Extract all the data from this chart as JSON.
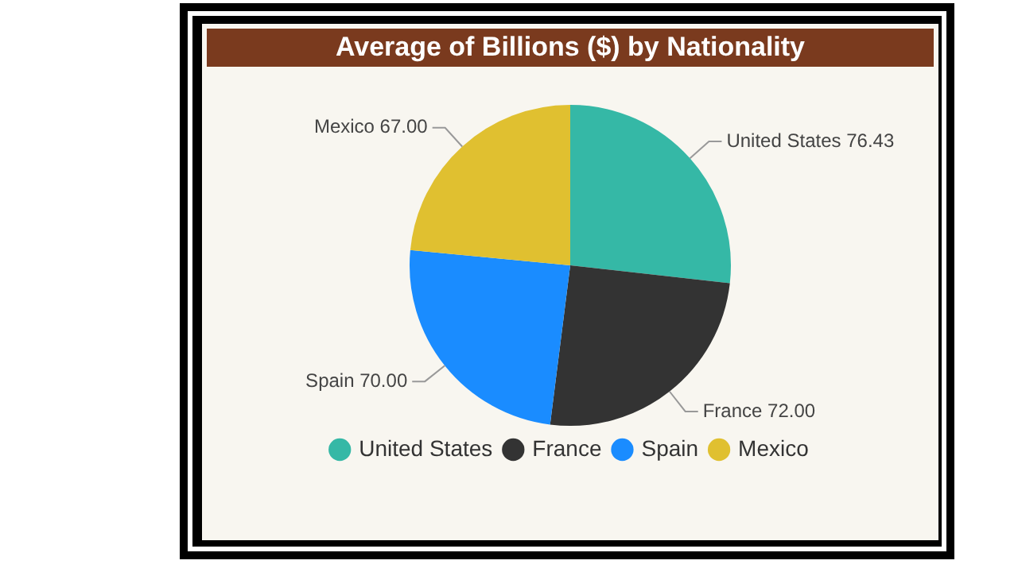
{
  "chart_data": {
    "type": "pie",
    "title": "Average of Billions ($) by Nationality",
    "categories": [
      "United States",
      "France",
      "Spain",
      "Mexico"
    ],
    "values": [
      76.43,
      72.0,
      70.0,
      67.0
    ],
    "value_labels": [
      "76.43",
      "72.00",
      "70.00",
      "67.00"
    ],
    "colors": [
      "#35b8a6",
      "#333333",
      "#1a8cff",
      "#e0c030"
    ],
    "legend": "bottom"
  }
}
